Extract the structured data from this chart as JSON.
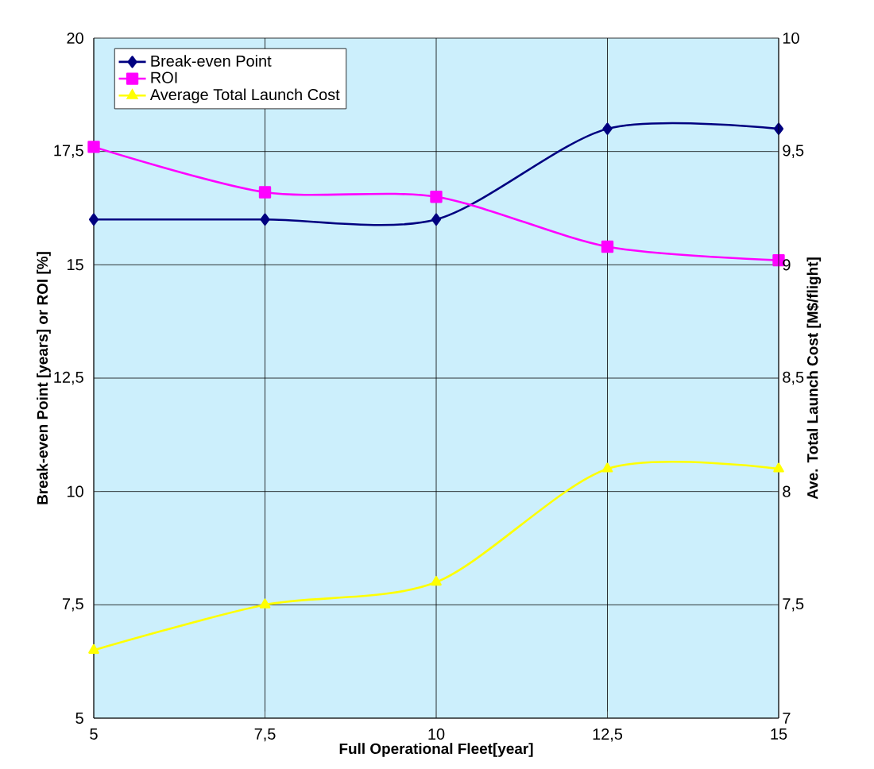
{
  "chart_data": {
    "type": "line",
    "xlabel": "Full Operational Fleet[year]",
    "ylabel": "Break-even Point [years] or  ROI [%]",
    "y2label": "Ave. Total Launch Cost [M$/flight]",
    "x": [
      5,
      7.5,
      10,
      12.5,
      15
    ],
    "series": [
      {
        "name": "Break-even Point",
        "color": "#000080",
        "marker": "diamond",
        "values": [
          16,
          16,
          16,
          18,
          18
        ]
      },
      {
        "name": "ROI",
        "color": "#ff00ff",
        "marker": "square",
        "values": [
          17.6,
          16.6,
          16.5,
          15.4,
          15.1
        ]
      },
      {
        "name": "Average Total Launch Cost",
        "color": "#ffff00",
        "marker": "triangle",
        "axis": "y2",
        "values": [
          7.3,
          7.5,
          7.6,
          8.1,
          8.1
        ]
      }
    ],
    "xlim": [
      5,
      15
    ],
    "xticks": [
      5,
      {
        "value": 7.5,
        "label": "7,5"
      },
      10,
      {
        "value": 12.5,
        "label": "12,5"
      },
      15
    ],
    "ylim": [
      5,
      20
    ],
    "yticks": [
      5,
      {
        "value": 7.5,
        "label": "7,5"
      },
      10,
      {
        "value": 12.5,
        "label": "12,5"
      },
      15,
      {
        "value": 17.5,
        "label": "17,5"
      },
      20
    ],
    "y2lim": [
      7,
      10
    ],
    "y2ticks": [
      7,
      {
        "value": 7.5,
        "label": "7,5"
      },
      8,
      {
        "value": 8.5,
        "label": "8,5"
      },
      9,
      {
        "value": 9.5,
        "label": "9,5"
      },
      10
    ],
    "grid": true,
    "legend": "top left",
    "line_style": "solid"
  }
}
